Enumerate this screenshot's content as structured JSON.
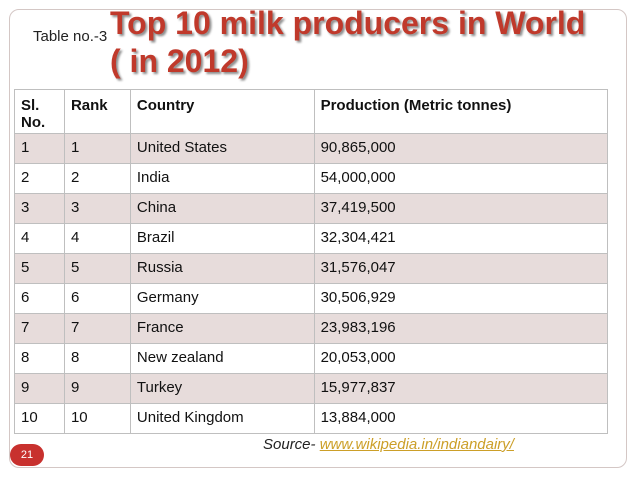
{
  "slide": {
    "table_label": "Table no.-3",
    "title_line1": "Top 10 milk producers in World",
    "title_line2": "( in 2012)",
    "title_color": "#c0392b",
    "page_number": "21",
    "source_prefix": "Source-",
    "source_link": "www.wikipedia.in/indiandairy/"
  },
  "table": {
    "headers": [
      "Sl. No.",
      "Rank",
      "Country",
      "Production (Metric tonnes)"
    ],
    "rows": [
      [
        "1",
        "1",
        "United States",
        "90,865,000"
      ],
      [
        "2",
        "2",
        "India",
        "54,000,000"
      ],
      [
        "3",
        "3",
        "China",
        "37,419,500"
      ],
      [
        "4",
        "4",
        "Brazil",
        "32,304,421"
      ],
      [
        "5",
        "5",
        "Russia",
        "31,576,047"
      ],
      [
        "6",
        "6",
        "Germany",
        "30,506,929"
      ],
      [
        "7",
        "7",
        "France",
        "23,983,196"
      ],
      [
        "8",
        "8",
        "New zealand",
        "20,053,000"
      ],
      [
        "9",
        "9",
        "Turkey",
        "15,977,837"
      ],
      [
        "10",
        "10",
        "United Kingdom",
        "13,884,000"
      ]
    ]
  },
  "colors": {
    "row_shade": "#e7dcdb",
    "badge": "#c8312e",
    "link": "#cc9f28"
  }
}
